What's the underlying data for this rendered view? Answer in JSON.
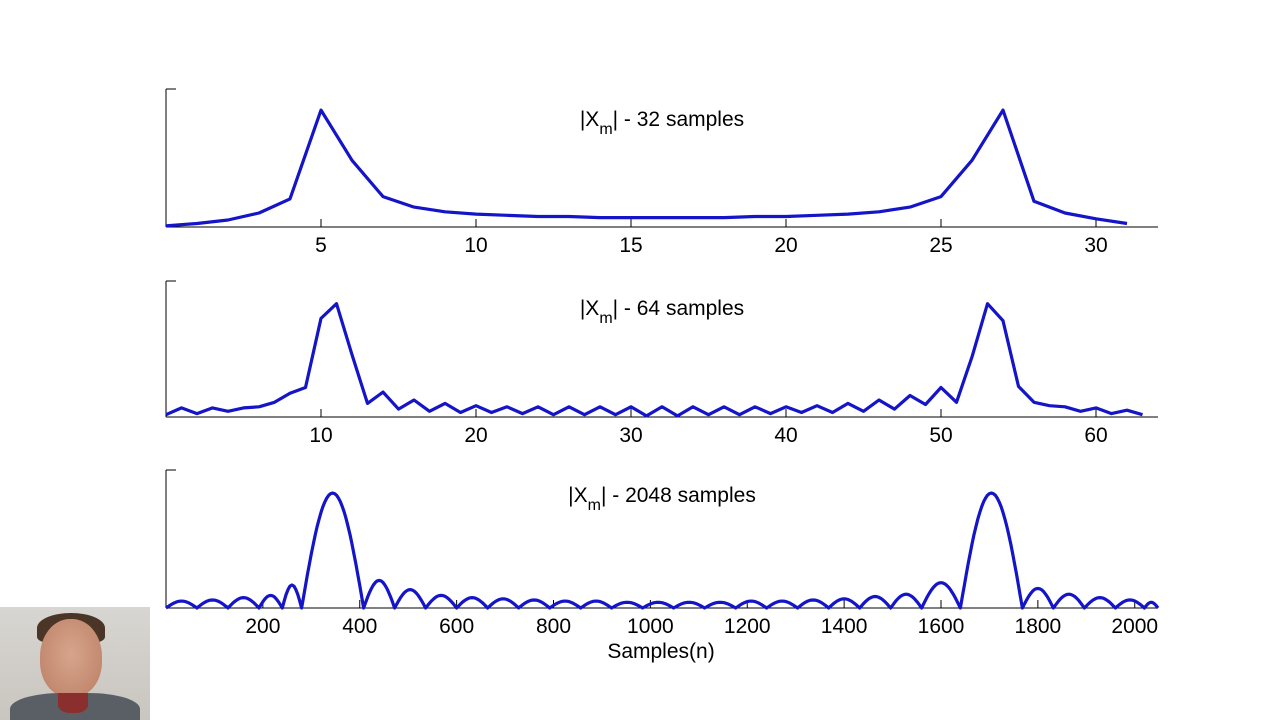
{
  "chart_data": [
    {
      "type": "line",
      "title_base": "|X",
      "title_sub": "m",
      "title_rest": "| - 32 samples",
      "xlim": [
        0,
        32
      ],
      "ticks": [
        5,
        10,
        15,
        20,
        25,
        30
      ],
      "tick_labels": [
        "5",
        "10",
        "15",
        "20",
        "25",
        "30"
      ],
      "x": [
        0,
        1,
        2,
        3,
        4,
        5,
        6,
        7,
        8,
        9,
        10,
        11,
        12,
        13,
        14,
        15,
        16,
        17,
        18,
        19,
        20,
        21,
        22,
        23,
        24,
        25,
        26,
        27,
        28,
        29,
        30,
        31
      ],
      "y": [
        0.01,
        0.03,
        0.06,
        0.12,
        0.24,
        1.0,
        0.57,
        0.26,
        0.17,
        0.13,
        0.11,
        0.1,
        0.09,
        0.09,
        0.08,
        0.08,
        0.08,
        0.08,
        0.08,
        0.09,
        0.09,
        0.1,
        0.11,
        0.13,
        0.17,
        0.26,
        0.57,
        1.0,
        0.22,
        0.12,
        0.07,
        0.03
      ],
      "ylim": [
        0,
        1.18
      ],
      "color": "#1414c8"
    },
    {
      "type": "line",
      "title_base": "|X",
      "title_sub": "m",
      "title_rest": "| - 64 samples",
      "xlim": [
        0,
        64
      ],
      "ticks": [
        10,
        20,
        30,
        40,
        50,
        60
      ],
      "tick_labels": [
        "10",
        "20",
        "30",
        "40",
        "50",
        "60"
      ],
      "x": [
        0,
        1,
        2,
        3,
        4,
        5,
        6,
        7,
        8,
        9,
        10,
        11,
        12,
        13,
        14,
        15,
        16,
        17,
        18,
        19,
        20,
        21,
        22,
        23,
        24,
        25,
        26,
        27,
        28,
        29,
        30,
        31,
        32,
        33,
        34,
        35,
        36,
        37,
        38,
        39,
        40,
        41,
        42,
        43,
        44,
        45,
        46,
        47,
        48,
        49,
        50,
        51,
        52,
        53,
        54,
        55,
        56,
        57,
        58,
        59,
        60,
        61,
        62,
        63
      ],
      "y": [
        0.02,
        0.08,
        0.03,
        0.08,
        0.05,
        0.08,
        0.09,
        0.13,
        0.21,
        0.26,
        0.87,
        1.0,
        0.55,
        0.12,
        0.22,
        0.07,
        0.15,
        0.05,
        0.12,
        0.04,
        0.1,
        0.04,
        0.09,
        0.03,
        0.09,
        0.02,
        0.09,
        0.02,
        0.09,
        0.02,
        0.09,
        0.01,
        0.09,
        0.01,
        0.09,
        0.02,
        0.09,
        0.02,
        0.09,
        0.03,
        0.09,
        0.04,
        0.1,
        0.04,
        0.12,
        0.05,
        0.15,
        0.07,
        0.19,
        0.11,
        0.26,
        0.13,
        0.53,
        1.0,
        0.85,
        0.27,
        0.13,
        0.1,
        0.09,
        0.05,
        0.08,
        0.03,
        0.06,
        0.02
      ],
      "ylim": [
        0,
        1.2
      ],
      "color": "#1414c8"
    },
    {
      "type": "line",
      "title_base": "|X",
      "title_sub": "m",
      "title_rest": "| - 2048 samples",
      "xlim": [
        0,
        2048
      ],
      "ticks": [
        200,
        400,
        600,
        800,
        1000,
        1200,
        1400,
        1600,
        1800,
        2000
      ],
      "tick_labels": [
        "200",
        "400",
        "600",
        "800",
        "1000",
        "1200",
        "1400",
        "1600",
        "1800",
        "2000"
      ],
      "xlabel": "Samples(n)",
      "ylim": [
        0,
        1.2
      ],
      "main_peaks": [
        {
          "center": 344,
          "halfwidth": 64
        },
        {
          "center": 1704,
          "halfwidth": 64
        }
      ],
      "sidelobes": [
        {
          "from": 0,
          "to": 64,
          "peak": 0.06
        },
        {
          "from": 64,
          "to": 128,
          "peak": 0.07
        },
        {
          "from": 128,
          "to": 192,
          "peak": 0.09
        },
        {
          "from": 192,
          "to": 240,
          "peak": 0.11
        },
        {
          "from": 240,
          "to": 280,
          "peak": 0.2
        },
        {
          "from": 408,
          "to": 472,
          "peak": 0.24
        },
        {
          "from": 472,
          "to": 536,
          "peak": 0.16
        },
        {
          "from": 536,
          "to": 600,
          "peak": 0.11
        },
        {
          "from": 600,
          "to": 664,
          "peak": 0.09
        },
        {
          "from": 664,
          "to": 728,
          "peak": 0.08
        },
        {
          "from": 728,
          "to": 792,
          "peak": 0.07
        },
        {
          "from": 792,
          "to": 856,
          "peak": 0.06
        },
        {
          "from": 856,
          "to": 920,
          "peak": 0.06
        },
        {
          "from": 920,
          "to": 984,
          "peak": 0.05
        },
        {
          "from": 984,
          "to": 1048,
          "peak": 0.05
        },
        {
          "from": 1048,
          "to": 1112,
          "peak": 0.05
        },
        {
          "from": 1112,
          "to": 1176,
          "peak": 0.05
        },
        {
          "from": 1176,
          "to": 1240,
          "peak": 0.06
        },
        {
          "from": 1240,
          "to": 1304,
          "peak": 0.06
        },
        {
          "from": 1304,
          "to": 1368,
          "peak": 0.07
        },
        {
          "from": 1368,
          "to": 1432,
          "peak": 0.08
        },
        {
          "from": 1432,
          "to": 1496,
          "peak": 0.1
        },
        {
          "from": 1496,
          "to": 1560,
          "peak": 0.12
        },
        {
          "from": 1560,
          "to": 1640,
          "peak": 0.22
        },
        {
          "from": 1768,
          "to": 1832,
          "peak": 0.17
        },
        {
          "from": 1832,
          "to": 1896,
          "peak": 0.12
        },
        {
          "from": 1896,
          "to": 1960,
          "peak": 0.09
        },
        {
          "from": 1960,
          "to": 2020,
          "peak": 0.07
        },
        {
          "from": 2020,
          "to": 2048,
          "peak": 0.05
        }
      ],
      "color": "#1414c8"
    }
  ]
}
